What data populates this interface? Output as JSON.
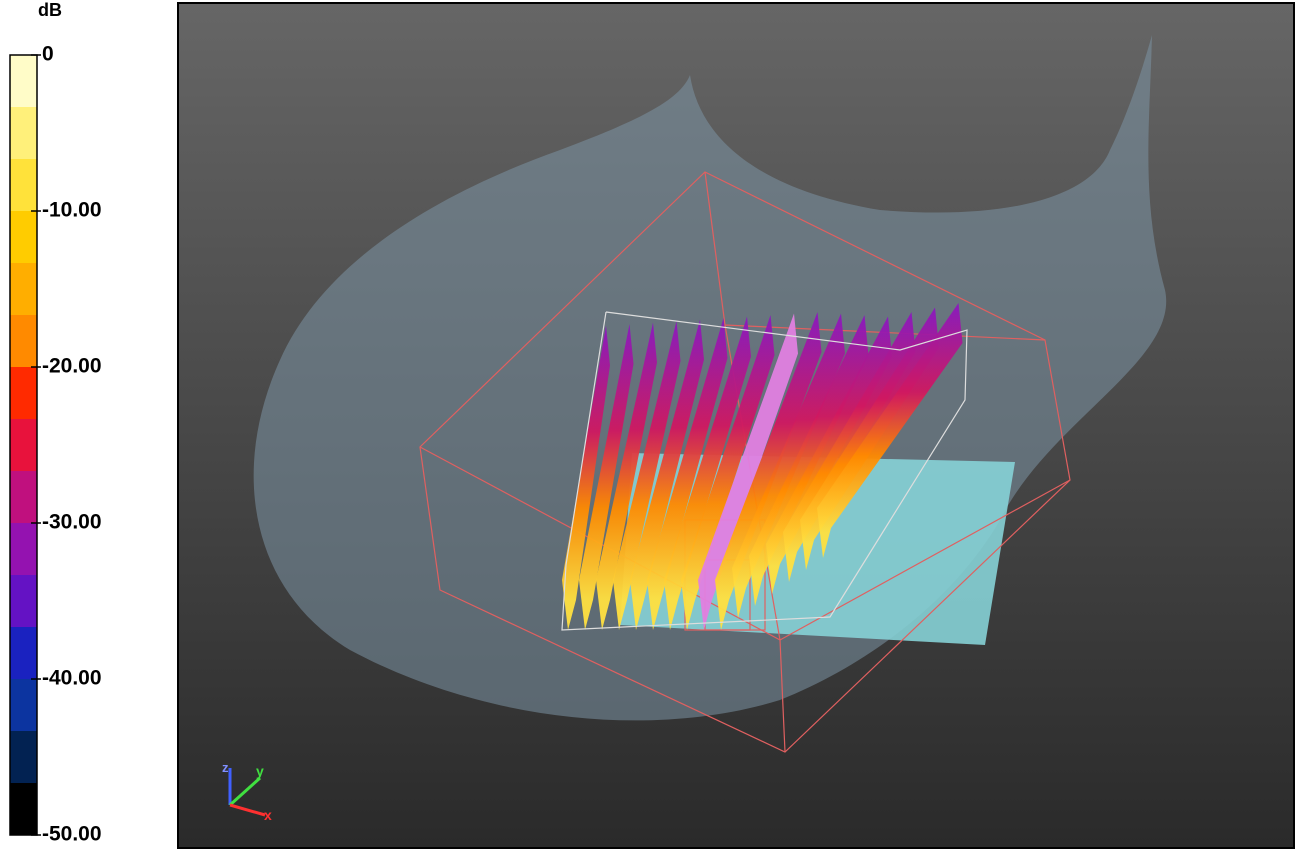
{
  "colorbar": {
    "title": "dB",
    "range": [
      -50,
      0
    ],
    "ticks": [
      {
        "value": 0,
        "label": "0"
      },
      {
        "value": -10,
        "label": "-10.00"
      },
      {
        "value": -20,
        "label": "-20.00"
      },
      {
        "value": -30,
        "label": "-30.00"
      },
      {
        "value": -40,
        "label": "-40.00"
      },
      {
        "value": -50,
        "label": "-50.00"
      }
    ],
    "colors": [
      "#fffcc8",
      "#fff07a",
      "#ffe23a",
      "#ffcc00",
      "#ffae00",
      "#ff8a00",
      "#ff2a00",
      "#e8123c",
      "#c0107e",
      "#9412b0",
      "#6412c4",
      "#1a22c0",
      "#0c34a0",
      "#022252",
      "#000000"
    ]
  },
  "axes_triad": {
    "labels": [
      "z",
      "y",
      "x"
    ]
  }
}
